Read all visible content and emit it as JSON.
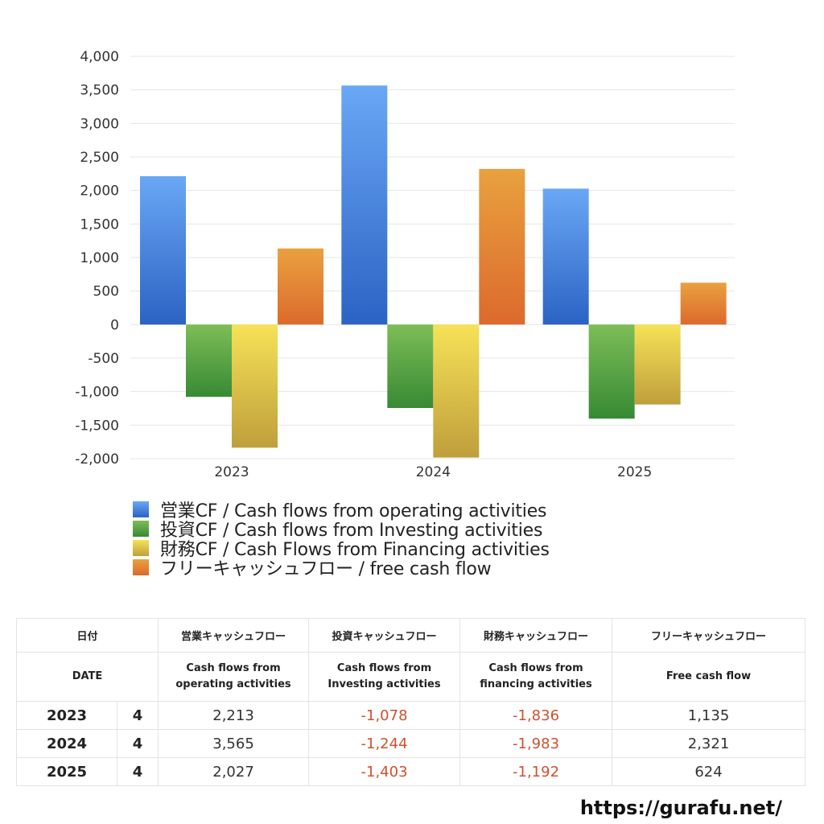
{
  "chart_data": {
    "type": "bar",
    "categories": [
      "2023",
      "2024",
      "2025"
    ],
    "ylim": [
      -2000,
      4000
    ],
    "yticks": [
      4000,
      3500,
      3000,
      2500,
      2000,
      1500,
      1000,
      500,
      0,
      -500,
      -1000,
      -1500,
      -2000
    ],
    "ytick_labels": [
      "4,000",
      "3,500",
      "3,000",
      "2,500",
      "2,000",
      "1,500",
      "1,000",
      "500",
      "0",
      "-500",
      "-1,000",
      "-1,500",
      "-2,000"
    ],
    "grid": true,
    "legend_position": "bottom-left",
    "series": [
      {
        "name": "営業CF / Cash flows from operating activities",
        "values": [
          2213,
          3565,
          2027
        ],
        "color_top": "#6aa7f5",
        "color_bottom": "#2b63c4"
      },
      {
        "name": "投資CF / Cash flows from Investing activities",
        "values": [
          -1078,
          -1244,
          -1403
        ],
        "color_top": "#7dbd57",
        "color_bottom": "#378a34"
      },
      {
        "name": "財務CF / Cash Flows from Financing activities",
        "values": [
          -1836,
          -1983,
          -1192
        ],
        "color_top": "#f6e257",
        "color_bottom": "#bf9f3c"
      },
      {
        "name": "フリーキャッシュフロー / free cash flow",
        "values": [
          1135,
          2321,
          624
        ],
        "color_top": "#e9a13f",
        "color_bottom": "#dc6a2c"
      }
    ]
  },
  "table": {
    "headers_jp": [
      "日付",
      "営業キャッシュフロー",
      "投資キャッシュフロー",
      "財務キャッシュフロー",
      "フリーキャッシュフロー"
    ],
    "headers_en": {
      "date": "DATE",
      "operating": [
        "Cash flows from",
        "operating activities"
      ],
      "investing": [
        "Cash flows from",
        "Investing activities"
      ],
      "financing": [
        "Cash flows from",
        "financing activities"
      ],
      "free": "Free cash flow"
    },
    "rows": [
      {
        "year": "2023",
        "quarter": "4",
        "operating": "2,213",
        "investing": "-1,078",
        "financing": "-1,836",
        "free": "1,135"
      },
      {
        "year": "2024",
        "quarter": "4",
        "operating": "3,565",
        "investing": "-1,244",
        "financing": "-1,983",
        "free": "2,321"
      },
      {
        "year": "2025",
        "quarter": "4",
        "operating": "2,027",
        "investing": "-1,403",
        "financing": "-1,192",
        "free": "624"
      }
    ]
  },
  "site_url": "https://gurafu.net/"
}
